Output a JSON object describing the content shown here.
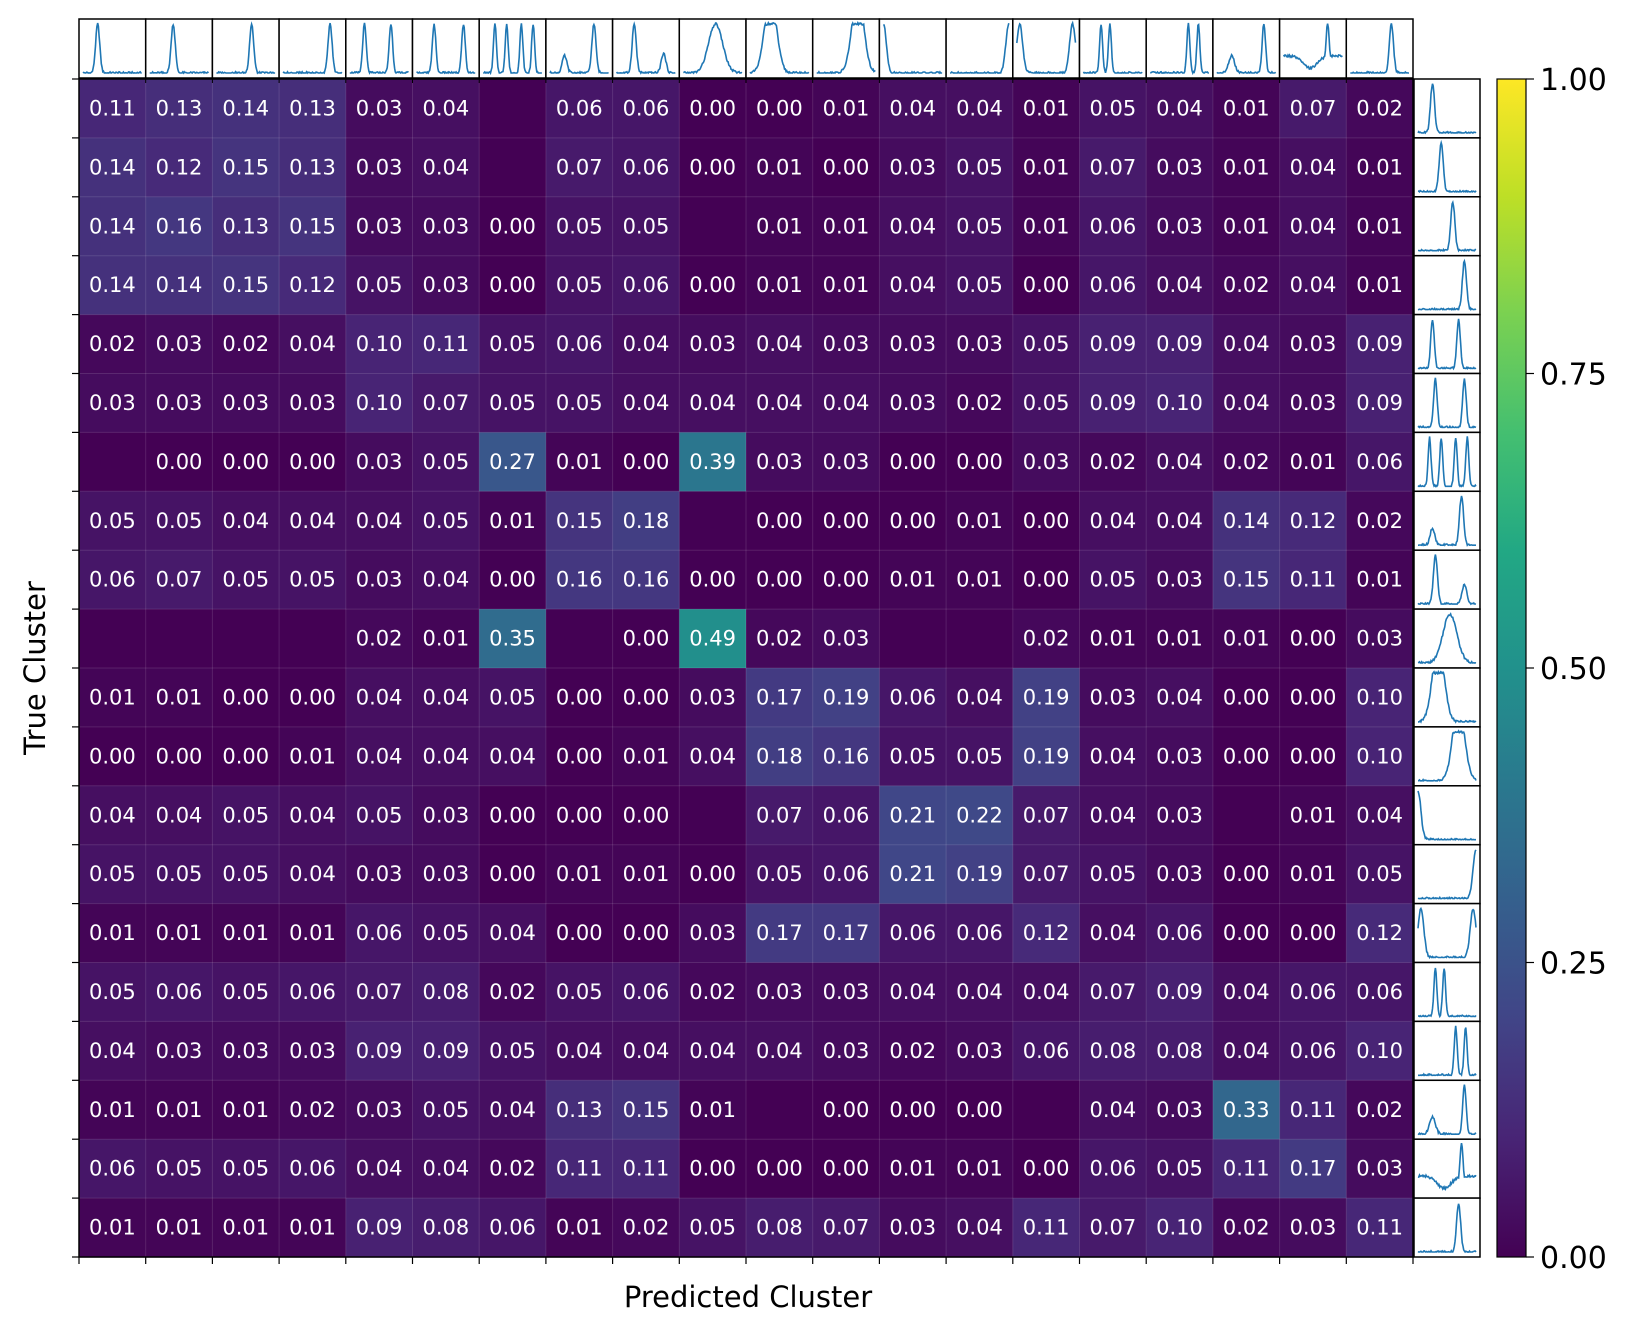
{
  "chart_data": {
    "type": "heatmap",
    "xlabel": "Predicted Cluster",
    "ylabel": "True Cluster",
    "value_range": [
      0,
      1
    ],
    "colormap": "viridis",
    "colorbar_ticks": [
      "0.00",
      "0.25",
      "0.50",
      "0.75",
      "1.00"
    ],
    "colorbar_tick_values": [
      0,
      0.25,
      0.5,
      0.75,
      1.0
    ],
    "n_rows": 20,
    "n_cols": 20,
    "values": [
      [
        0.11,
        0.13,
        0.14,
        0.13,
        0.03,
        0.04,
        null,
        0.06,
        0.06,
        0.0,
        0.0,
        0.01,
        0.04,
        0.04,
        0.01,
        0.05,
        0.04,
        0.01,
        0.07,
        0.02
      ],
      [
        0.14,
        0.12,
        0.15,
        0.13,
        0.03,
        0.04,
        null,
        0.07,
        0.06,
        0.0,
        0.01,
        0.0,
        0.03,
        0.05,
        0.01,
        0.07,
        0.03,
        0.01,
        0.04,
        0.01
      ],
      [
        0.14,
        0.16,
        0.13,
        0.15,
        0.03,
        0.03,
        0.0,
        0.05,
        0.05,
        null,
        0.01,
        0.01,
        0.04,
        0.05,
        0.01,
        0.06,
        0.03,
        0.01,
        0.04,
        0.01
      ],
      [
        0.14,
        0.14,
        0.15,
        0.12,
        0.05,
        0.03,
        0.0,
        0.05,
        0.06,
        0.0,
        0.01,
        0.01,
        0.04,
        0.05,
        0.0,
        0.06,
        0.04,
        0.02,
        0.04,
        0.01
      ],
      [
        0.02,
        0.03,
        0.02,
        0.04,
        0.1,
        0.11,
        0.05,
        0.06,
        0.04,
        0.03,
        0.04,
        0.03,
        0.03,
        0.03,
        0.05,
        0.09,
        0.09,
        0.04,
        0.03,
        0.09
      ],
      [
        0.03,
        0.03,
        0.03,
        0.03,
        0.1,
        0.07,
        0.05,
        0.05,
        0.04,
        0.04,
        0.04,
        0.04,
        0.03,
        0.02,
        0.05,
        0.09,
        0.1,
        0.04,
        0.03,
        0.09
      ],
      [
        null,
        0.0,
        0.0,
        0.0,
        0.03,
        0.05,
        0.27,
        0.01,
        0.0,
        0.39,
        0.03,
        0.03,
        0.0,
        0.0,
        0.03,
        0.02,
        0.04,
        0.02,
        0.01,
        0.06
      ],
      [
        0.05,
        0.05,
        0.04,
        0.04,
        0.04,
        0.05,
        0.01,
        0.15,
        0.18,
        null,
        0.0,
        0.0,
        0.0,
        0.01,
        0.0,
        0.04,
        0.04,
        0.14,
        0.12,
        0.02
      ],
      [
        0.06,
        0.07,
        0.05,
        0.05,
        0.03,
        0.04,
        0.0,
        0.16,
        0.16,
        0.0,
        0.0,
        0.0,
        0.01,
        0.01,
        0.0,
        0.05,
        0.03,
        0.15,
        0.11,
        0.01
      ],
      [
        null,
        null,
        null,
        null,
        0.02,
        0.01,
        0.35,
        null,
        0.0,
        0.49,
        0.02,
        0.03,
        null,
        null,
        0.02,
        0.01,
        0.01,
        0.01,
        0.0,
        0.03
      ],
      [
        0.01,
        0.01,
        0.0,
        0.0,
        0.04,
        0.04,
        0.05,
        0.0,
        0.0,
        0.03,
        0.17,
        0.19,
        0.06,
        0.04,
        0.19,
        0.03,
        0.04,
        0.0,
        0.0,
        0.1
      ],
      [
        0.0,
        0.0,
        0.0,
        0.01,
        0.04,
        0.04,
        0.04,
        0.0,
        0.01,
        0.04,
        0.18,
        0.16,
        0.05,
        0.05,
        0.19,
        0.04,
        0.03,
        0.0,
        0.0,
        0.1
      ],
      [
        0.04,
        0.04,
        0.05,
        0.04,
        0.05,
        0.03,
        0.0,
        0.0,
        0.0,
        null,
        0.07,
        0.06,
        0.21,
        0.22,
        0.07,
        0.04,
        0.03,
        null,
        0.01,
        0.04
      ],
      [
        0.05,
        0.05,
        0.05,
        0.04,
        0.03,
        0.03,
        0.0,
        0.01,
        0.01,
        0.0,
        0.05,
        0.06,
        0.21,
        0.19,
        0.07,
        0.05,
        0.03,
        0.0,
        0.01,
        0.05
      ],
      [
        0.01,
        0.01,
        0.01,
        0.01,
        0.06,
        0.05,
        0.04,
        0.0,
        0.0,
        0.03,
        0.17,
        0.17,
        0.06,
        0.06,
        0.12,
        0.04,
        0.06,
        0.0,
        0.0,
        0.12
      ],
      [
        0.05,
        0.06,
        0.05,
        0.06,
        0.07,
        0.08,
        0.02,
        0.05,
        0.06,
        0.02,
        0.03,
        0.03,
        0.04,
        0.04,
        0.04,
        0.07,
        0.09,
        0.04,
        0.06,
        0.06
      ],
      [
        0.04,
        0.03,
        0.03,
        0.03,
        0.09,
        0.09,
        0.05,
        0.04,
        0.04,
        0.04,
        0.04,
        0.03,
        0.02,
        0.03,
        0.06,
        0.08,
        0.08,
        0.04,
        0.06,
        0.1
      ],
      [
        0.01,
        0.01,
        0.01,
        0.02,
        0.03,
        0.05,
        0.04,
        0.13,
        0.15,
        0.01,
        null,
        0.0,
        0.0,
        0.0,
        null,
        0.04,
        0.03,
        0.33,
        0.11,
        0.02
      ],
      [
        0.06,
        0.05,
        0.05,
        0.06,
        0.04,
        0.04,
        0.02,
        0.11,
        0.11,
        0.0,
        0.0,
        0.0,
        0.01,
        0.01,
        0.0,
        0.06,
        0.05,
        0.11,
        0.17,
        0.03
      ],
      [
        0.01,
        0.01,
        0.01,
        0.01,
        0.09,
        0.08,
        0.06,
        0.01,
        0.02,
        0.05,
        0.08,
        0.07,
        0.03,
        0.04,
        0.11,
        0.07,
        0.1,
        0.02,
        0.03,
        0.11
      ]
    ],
    "cluster_profiles": [
      {
        "shape": "single-peak",
        "peaks": [
          0.25
        ]
      },
      {
        "shape": "single-peak",
        "peaks": [
          0.4
        ]
      },
      {
        "shape": "single-peak",
        "peaks": [
          0.6
        ]
      },
      {
        "shape": "single-peak",
        "peaks": [
          0.8
        ]
      },
      {
        "shape": "double-peak",
        "peaks": [
          0.25,
          0.7
        ]
      },
      {
        "shape": "double-peak",
        "peaks": [
          0.3,
          0.8
        ]
      },
      {
        "shape": "multi-peak",
        "peaks": [
          0.2,
          0.4,
          0.65,
          0.85
        ]
      },
      {
        "shape": "small-then-tall",
        "peaks": [
          0.25,
          0.75
        ]
      },
      {
        "shape": "tall-then-small",
        "peaks": [
          0.3,
          0.8
        ]
      },
      {
        "shape": "broad-hump",
        "peaks": [
          0.55
        ]
      },
      {
        "shape": "broad-plateau-left",
        "peaks": [
          0.35
        ]
      },
      {
        "shape": "broad-plateau-right",
        "peaks": [
          0.7
        ]
      },
      {
        "shape": "left-edge",
        "peaks": [
          0.02
        ]
      },
      {
        "shape": "right-edge",
        "peaks": [
          0.97
        ]
      },
      {
        "shape": "both-edges",
        "peaks": [
          0.05,
          0.95
        ]
      },
      {
        "shape": "twin-peaks-left",
        "peaks": [
          0.3,
          0.45
        ]
      },
      {
        "shape": "twin-peaks-right",
        "peaks": [
          0.65,
          0.82
        ]
      },
      {
        "shape": "bump-and-peak",
        "peaks": [
          0.25,
          0.8
        ]
      },
      {
        "shape": "dip-and-peak",
        "peaks": [
          0.75
        ]
      },
      {
        "shape": "single-peak-late",
        "peaks": [
          0.7
        ]
      }
    ],
    "series_color": "#1f77b4"
  }
}
